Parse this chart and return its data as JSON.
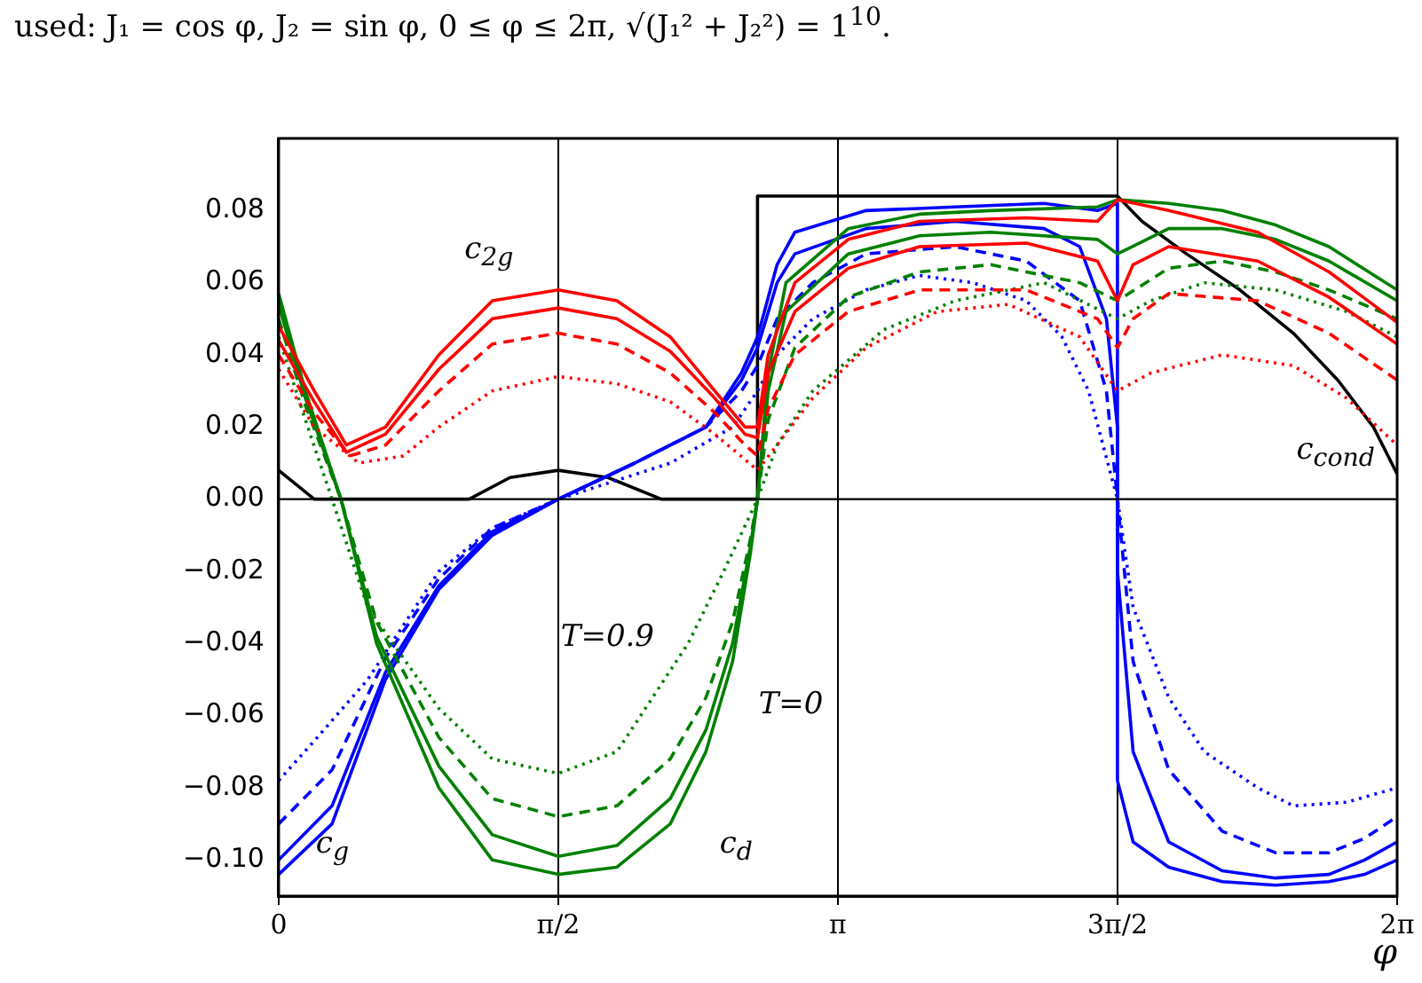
{
  "chart_data": {
    "type": "line",
    "title": "used: J₁ = cos φ, J₂ = sin φ, 0 ≤ φ ≤ 2π, √(J₁² + J₂²) = 1$^{10}$.",
    "xlabel": "φ",
    "xlim": [
      0,
      6.2832
    ],
    "ylim": [
      -0.11,
      0.1
    ],
    "xticks": [
      0,
      {
        "value": 1.5708,
        "label": "π/2"
      },
      {
        "value": 3.1416,
        "label": "π"
      },
      {
        "value": 4.7124,
        "label": "3π/2"
      },
      {
        "value": 6.2832,
        "label": "2π"
      }
    ],
    "yticks": [
      {
        "value": -0.1,
        "label": "−0.10"
      },
      -0.08,
      -0.06,
      -0.04,
      -0.02,
      {
        "value": 0,
        "label": "0.00"
      },
      0.02,
      0.04,
      0.06,
      0.08
    ],
    "grid": "x",
    "legend": false,
    "marker": "none",
    "ref_lines": [
      {
        "axis": "y",
        "value": 0,
        "color": "#000000"
      }
    ],
    "annotations": [
      "c$_{2g}$",
      "c$_{g}$",
      "c$_{d}$",
      "T=0.9",
      "T=0",
      "c$_{cond}$"
    ],
    "series": [
      {
        "color": "#ff0000",
        "line_style": "solid",
        "x": [
          0,
          0.2,
          0.38,
          0.6,
          0.9,
          1.2,
          1.571,
          1.9,
          2.2,
          2.45,
          2.62,
          2.69,
          2.75,
          2.9,
          3.2,
          3.6,
          4.2,
          4.6,
          4.712,
          5.0,
          5.5,
          5.9,
          6.283
        ],
        "values": [
          0.048,
          0.03,
          0.015,
          0.02,
          0.04,
          0.055,
          0.058,
          0.055,
          0.045,
          0.03,
          0.02,
          0.02,
          0.04,
          0.06,
          0.072,
          0.077,
          0.078,
          0.077,
          0.083,
          0.08,
          0.074,
          0.063,
          0.049
        ]
      },
      {
        "color": "#ff0000",
        "line_style": "solid",
        "x": [
          0,
          0.2,
          0.38,
          0.6,
          0.9,
          1.2,
          1.571,
          1.9,
          2.2,
          2.45,
          2.62,
          2.69,
          2.75,
          2.9,
          3.2,
          3.6,
          4.2,
          4.6,
          4.712,
          4.8,
          5.0,
          5.5,
          5.9,
          6.283
        ],
        "values": [
          0.044,
          0.027,
          0.013,
          0.018,
          0.036,
          0.05,
          0.053,
          0.05,
          0.041,
          0.028,
          0.018,
          0.017,
          0.035,
          0.052,
          0.064,
          0.07,
          0.071,
          0.066,
          0.055,
          0.065,
          0.07,
          0.066,
          0.056,
          0.043
        ]
      },
      {
        "color": "#ff0000",
        "line_style": "dashed",
        "x": [
          0,
          0.2,
          0.4,
          0.6,
          0.9,
          1.2,
          1.571,
          1.9,
          2.2,
          2.45,
          2.62,
          2.69,
          2.75,
          2.9,
          3.2,
          3.6,
          4.2,
          4.6,
          4.712,
          4.8,
          5.0,
          5.5,
          5.9,
          6.283
        ],
        "values": [
          0.04,
          0.024,
          0.012,
          0.015,
          0.03,
          0.043,
          0.046,
          0.043,
          0.035,
          0.024,
          0.015,
          0.012,
          0.025,
          0.04,
          0.052,
          0.058,
          0.058,
          0.05,
          0.042,
          0.05,
          0.057,
          0.055,
          0.046,
          0.033
        ]
      },
      {
        "color": "#ff0000",
        "line_style": "dotted",
        "x": [
          0,
          0.2,
          0.45,
          0.7,
          0.9,
          1.2,
          1.571,
          1.9,
          2.2,
          2.45,
          2.62,
          2.69,
          2.8,
          3.0,
          3.3,
          3.7,
          4.1,
          4.5,
          4.712,
          4.9,
          5.3,
          5.7,
          6.0,
          6.283
        ],
        "values": [
          0.036,
          0.02,
          0.01,
          0.012,
          0.02,
          0.03,
          0.034,
          0.032,
          0.027,
          0.018,
          0.011,
          0.008,
          0.015,
          0.028,
          0.042,
          0.052,
          0.054,
          0.045,
          0.03,
          0.035,
          0.04,
          0.037,
          0.028,
          0.015
        ]
      },
      {
        "color": "#008000",
        "line_style": "solid",
        "x": [
          0,
          0.15,
          0.35,
          0.55,
          0.9,
          1.2,
          1.571,
          1.9,
          2.2,
          2.4,
          2.55,
          2.65,
          2.69,
          2.75,
          2.85,
          3.2,
          3.6,
          4.0,
          4.6,
          4.712,
          5.0,
          5.3,
          5.6,
          5.9,
          6.283
        ],
        "values": [
          0.057,
          0.03,
          0,
          -0.04,
          -0.08,
          -0.1,
          -0.104,
          -0.102,
          -0.09,
          -0.07,
          -0.045,
          -0.015,
          0,
          0.035,
          0.06,
          0.075,
          0.079,
          0.08,
          0.081,
          0.083,
          0.082,
          0.08,
          0.076,
          0.07,
          0.058
        ]
      },
      {
        "color": "#008000",
        "line_style": "solid",
        "x": [
          0,
          0.15,
          0.35,
          0.55,
          0.9,
          1.2,
          1.571,
          1.9,
          2.2,
          2.4,
          2.55,
          2.65,
          2.69,
          2.75,
          2.85,
          3.2,
          3.6,
          4.0,
          4.6,
          4.712,
          5.0,
          5.3,
          5.6,
          5.9,
          6.283
        ],
        "values": [
          0.054,
          0.028,
          0,
          -0.038,
          -0.074,
          -0.093,
          -0.099,
          -0.096,
          -0.083,
          -0.064,
          -0.04,
          -0.013,
          0,
          0.03,
          0.052,
          0.068,
          0.073,
          0.074,
          0.072,
          0.068,
          0.075,
          0.075,
          0.072,
          0.066,
          0.055
        ]
      },
      {
        "color": "#008000",
        "line_style": "dashed",
        "x": [
          0,
          0.15,
          0.35,
          0.55,
          0.9,
          1.2,
          1.571,
          1.9,
          2.2,
          2.4,
          2.55,
          2.65,
          2.69,
          2.75,
          2.9,
          3.2,
          3.6,
          4.0,
          4.5,
          4.712,
          5.0,
          5.3,
          5.6,
          5.9,
          6.283
        ],
        "values": [
          0.05,
          0.026,
          0,
          -0.034,
          -0.066,
          -0.083,
          -0.088,
          -0.085,
          -0.072,
          -0.055,
          -0.034,
          -0.011,
          0,
          0.022,
          0.042,
          0.056,
          0.063,
          0.065,
          0.06,
          0.055,
          0.064,
          0.066,
          0.063,
          0.058,
          0.05
        ]
      },
      {
        "color": "#008000",
        "line_style": "dotted",
        "x": [
          0,
          0.15,
          0.3,
          0.5,
          0.9,
          1.2,
          1.571,
          1.9,
          2.3,
          2.5,
          2.69,
          2.8,
          3.0,
          3.4,
          3.8,
          4.3,
          4.712,
          4.9,
          5.2,
          5.6,
          6.0,
          6.283
        ],
        "values": [
          0.045,
          0.022,
          0,
          -0.03,
          -0.058,
          -0.072,
          -0.076,
          -0.07,
          -0.04,
          -0.02,
          0,
          0.015,
          0.03,
          0.047,
          0.055,
          0.06,
          0.05,
          0.055,
          0.06,
          0.058,
          0.052,
          0.045
        ]
      },
      {
        "color": "#0000ff",
        "line_style": "solid",
        "x": [
          0,
          0.3,
          0.6,
          0.9,
          1.2,
          1.571,
          2.0,
          2.4,
          2.6,
          2.69,
          2.8,
          2.9,
          3.3,
          3.8,
          4.3,
          4.6,
          4.712,
          4.712,
          4.8,
          5.0,
          5.3,
          5.6,
          5.9,
          6.1,
          6.283
        ],
        "values": [
          -0.104,
          -0.09,
          -0.05,
          -0.025,
          -0.01,
          0,
          0.01,
          0.02,
          0.035,
          0.045,
          0.065,
          0.074,
          0.08,
          0.081,
          0.082,
          0.08,
          0.082,
          -0.078,
          -0.095,
          -0.102,
          -0.106,
          -0.107,
          -0.106,
          -0.104,
          -0.1
        ]
      },
      {
        "color": "#0000ff",
        "line_style": "solid",
        "x": [
          0,
          0.3,
          0.6,
          0.9,
          1.2,
          1.571,
          2.0,
          2.4,
          2.6,
          2.69,
          2.8,
          2.9,
          3.3,
          3.8,
          4.3,
          4.5,
          4.65,
          4.712,
          4.712,
          4.8,
          5.0,
          5.3,
          5.6,
          5.9,
          6.1,
          6.283
        ],
        "values": [
          -0.1,
          -0.085,
          -0.048,
          -0.024,
          -0.009,
          0,
          0.01,
          0.02,
          0.033,
          0.042,
          0.06,
          0.068,
          0.075,
          0.077,
          0.075,
          0.07,
          0.05,
          0.02,
          -0.02,
          -0.07,
          -0.095,
          -0.103,
          -0.105,
          -0.104,
          -0.1,
          -0.095
        ]
      },
      {
        "color": "#0000ff",
        "line_style": "dashed",
        "x": [
          0,
          0.3,
          0.6,
          0.9,
          1.2,
          1.571,
          2.0,
          2.4,
          2.6,
          2.69,
          2.8,
          3.0,
          3.3,
          3.8,
          4.2,
          4.5,
          4.65,
          4.712,
          4.8,
          5.0,
          5.3,
          5.6,
          5.9,
          6.1,
          6.283
        ],
        "values": [
          -0.09,
          -0.075,
          -0.044,
          -0.022,
          -0.008,
          0,
          0.01,
          0.02,
          0.03,
          0.037,
          0.05,
          0.06,
          0.068,
          0.07,
          0.066,
          0.055,
          0.03,
          0,
          -0.045,
          -0.075,
          -0.092,
          -0.098,
          -0.098,
          -0.094,
          -0.088
        ]
      },
      {
        "color": "#0000ff",
        "line_style": "dotted",
        "x": [
          0,
          0.2,
          0.5,
          0.9,
          1.2,
          1.571,
          2.2,
          2.55,
          2.69,
          2.8,
          3.0,
          3.3,
          3.6,
          3.9,
          4.2,
          4.4,
          4.55,
          4.712,
          4.8,
          5.0,
          5.2,
          5.5,
          5.7,
          6.0,
          6.283
        ],
        "values": [
          -0.078,
          -0.067,
          -0.05,
          -0.02,
          -0.008,
          0,
          0.01,
          0.02,
          0.03,
          0.04,
          0.05,
          0.058,
          0.062,
          0.06,
          0.055,
          0.045,
          0.03,
          0,
          -0.03,
          -0.055,
          -0.07,
          -0.08,
          -0.085,
          -0.084,
          -0.08
        ]
      },
      {
        "color": "#000000",
        "line_style": "solid",
        "x": [
          0,
          0.2,
          1.07,
          1.3,
          1.571,
          1.85,
          2.15,
          2.69,
          2.69,
          4.712,
          4.85,
          5.1,
          5.4,
          5.7,
          5.95,
          6.15,
          6.283
        ],
        "values": [
          0.008,
          0,
          0,
          0.006,
          0.008,
          0.006,
          0,
          0,
          0.084,
          0.084,
          0.077,
          0.068,
          0.058,
          0.046,
          0.033,
          0.02,
          0.007
        ]
      }
    ]
  }
}
